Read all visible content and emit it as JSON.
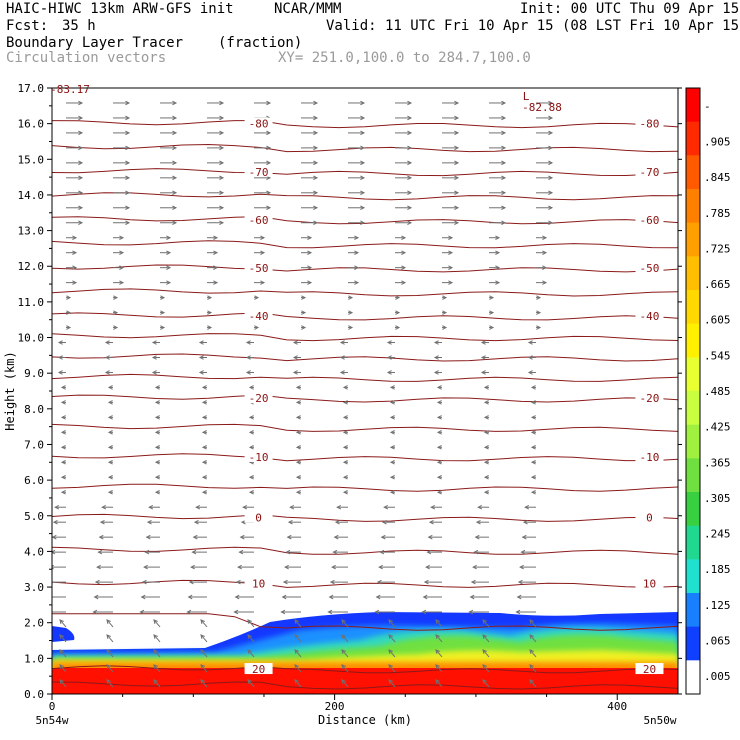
{
  "header": {
    "model": "HAIC-HIWC 13km ARW-GFS init",
    "org": "NCAR/MMM",
    "init": "Init: 00 UTC Thu 09 Apr 15",
    "fcst_label": "Fcst:",
    "fcst_value": "35 h",
    "valid": "Valid: 11 UTC Fri 10 Apr 15 (08 LST Fri 10 Apr 15)",
    "field": "Boundary Layer Tracer",
    "units": "(fraction)",
    "vectors": "Circulation vectors",
    "xy": "XY= 251.0,100.0 to 284.7,100.0"
  },
  "chart_data": {
    "type": "cross-section",
    "xlabel": "Distance (km)",
    "ylabel": "Height (km)",
    "xlim": [
      0,
      443
    ],
    "ylim": [
      0,
      17
    ],
    "x_ticks": [
      "0",
      "200",
      "400"
    ],
    "x_end_labels": [
      "5n54w",
      "5n50w"
    ],
    "y_ticks": [
      "0.0",
      "1.0",
      "2.0",
      "3.0",
      "4.0",
      "5.0",
      "6.0",
      "7.0",
      "8.0",
      "9.0",
      "10.0",
      "11.0",
      "12.0",
      "13.0",
      "14.0",
      "15.0",
      "16.0",
      "17.0"
    ],
    "colorbar_labels": [
      "-",
      ".905",
      ".845",
      ".785",
      ".725",
      ".665",
      ".605",
      ".545",
      ".485",
      ".425",
      ".365",
      ".305",
      ".245",
      ".185",
      ".125",
      ".065",
      ".005"
    ],
    "colorbar_colors": [
      "#ff0000",
      "#ff2a00",
      "#ff5a00",
      "#ff8000",
      "#ffa000",
      "#ffbe00",
      "#ffd800",
      "#fff000",
      "#e8ff30",
      "#c8ff40",
      "#a0f040",
      "#70e040",
      "#38d040",
      "#20d890",
      "#20e0d0",
      "#1880ff",
      "#1040ff",
      "#ffffff"
    ],
    "temperature_contours": [
      {
        "label": "20",
        "y": 0.7
      },
      {
        "label": "10",
        "y": 3.1
      },
      {
        "label": "0",
        "y": 4.95
      },
      {
        "label": "-10",
        "y": 6.65
      },
      {
        "label": "-20",
        "y": 8.3
      },
      {
        "label": "-40",
        "y": 10.6
      },
      {
        "label": "-50",
        "y": 11.95
      },
      {
        "label": "-60",
        "y": 13.3
      },
      {
        "label": "-70",
        "y": 14.65
      },
      {
        "label": "-80",
        "y": 16.0
      }
    ],
    "min_label": "-82.88",
    "low_marker": "L",
    "top_left_label": "-83.17"
  }
}
